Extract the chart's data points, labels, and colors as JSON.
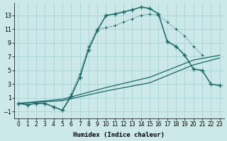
{
  "xlabel": "Humidex (Indice chaleur)",
  "background_color": "#cce8e8",
  "grid_color": "#aad8d8",
  "line_color": "#1a6666",
  "xlim": [
    -0.5,
    23.5
  ],
  "ylim": [
    -2.0,
    14.8
  ],
  "xticks": [
    0,
    1,
    2,
    3,
    4,
    5,
    6,
    7,
    8,
    9,
    10,
    11,
    12,
    13,
    14,
    15,
    16,
    17,
    18,
    19,
    20,
    21,
    22,
    23
  ],
  "yticks": [
    -1,
    1,
    3,
    5,
    7,
    9,
    11,
    13
  ],
  "main_x": [
    0,
    1,
    2,
    3,
    4,
    5,
    6,
    7,
    8,
    9,
    10,
    11,
    12,
    13,
    14,
    15,
    16,
    17,
    18,
    19,
    20,
    21,
    22,
    23
  ],
  "main_y": [
    0.2,
    0.0,
    0.2,
    0.2,
    -0.3,
    -0.8,
    1.2,
    4.0,
    8.0,
    10.8,
    13.0,
    13.2,
    13.5,
    13.8,
    14.2,
    14.0,
    13.2,
    9.2,
    8.5,
    7.2,
    5.2,
    5.0,
    3.0,
    2.8
  ],
  "dotted_x": [
    0,
    1,
    2,
    3,
    4,
    5,
    6,
    7,
    8,
    9,
    10,
    11,
    12,
    13,
    14,
    15,
    16,
    17,
    18,
    19,
    20,
    21
  ],
  "dotted_y": [
    0.2,
    0.0,
    0.2,
    0.2,
    -0.3,
    -0.8,
    1.5,
    4.5,
    8.5,
    11.0,
    11.2,
    11.5,
    12.0,
    12.5,
    13.0,
    13.2,
    13.0,
    12.0,
    11.0,
    10.0,
    8.5,
    7.2
  ],
  "line_a_x": [
    0,
    5,
    10,
    15,
    20,
    23
  ],
  "line_a_y": [
    0.2,
    0.8,
    2.5,
    4.0,
    6.5,
    7.2
  ],
  "line_b_x": [
    0,
    5,
    10,
    15,
    20,
    23
  ],
  "line_b_y": [
    0.2,
    0.6,
    2.0,
    3.2,
    5.8,
    6.8
  ]
}
